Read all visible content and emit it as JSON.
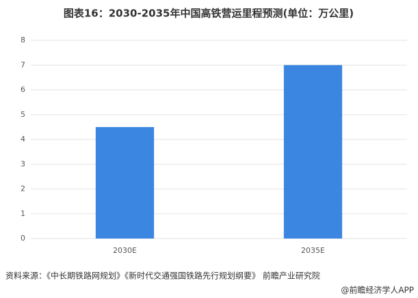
{
  "chart_data": {
    "type": "bar",
    "title": "图表16：2030-2035年中国高铁营运里程预测(单位：万公里)",
    "categories": [
      "2030E",
      "2035E"
    ],
    "values": [
      4.5,
      7
    ],
    "color": "#3b86e0",
    "ylim": [
      0,
      8
    ],
    "yticks": [
      0,
      1,
      2,
      3,
      4,
      5,
      6,
      7,
      8
    ],
    "grid": true
  },
  "source": "资料来源：《中长期铁路网规划》《新时代交通强国铁路先行规划纲要》 前瞻产业研究院",
  "credit": "@前瞻经济学人APP"
}
